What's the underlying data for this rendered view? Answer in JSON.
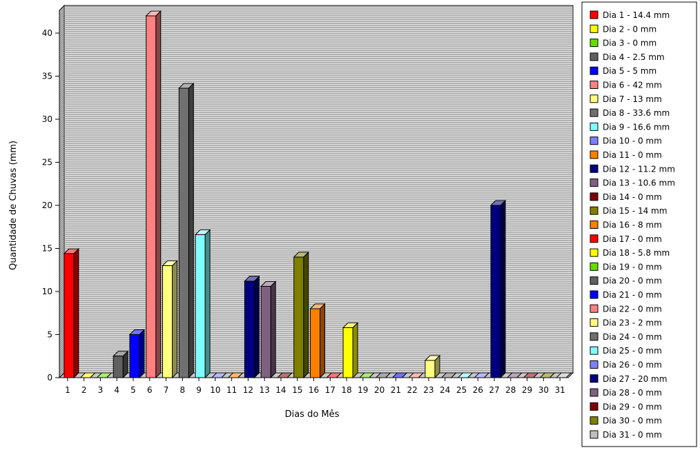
{
  "chart_data": {
    "type": "bar",
    "style": "3d",
    "xlabel": "Dias do Mês",
    "ylabel": "Quantidade de Chuvas (mm)",
    "ylim": [
      0,
      42
    ],
    "yticks": [
      0,
      5,
      10,
      15,
      20,
      25,
      30,
      35,
      40
    ],
    "grid": true,
    "legend_position": "right",
    "categories": [
      "1",
      "2",
      "3",
      "4",
      "5",
      "6",
      "7",
      "8",
      "9",
      "10",
      "11",
      "12",
      "13",
      "14",
      "15",
      "16",
      "17",
      "18",
      "19",
      "20",
      "21",
      "22",
      "23",
      "24",
      "25",
      "26",
      "27",
      "28",
      "29",
      "30",
      "31"
    ],
    "values": [
      14.4,
      0,
      0,
      2.5,
      5,
      42,
      13,
      33.6,
      16.6,
      0,
      0,
      11.2,
      10.6,
      0,
      14,
      8,
      0,
      5.8,
      0,
      0,
      0,
      0,
      2,
      0,
      0,
      0,
      20,
      0,
      0,
      0,
      0
    ],
    "colors": [
      "#ff0000",
      "#ffff00",
      "#66dd00",
      "#606060",
      "#0000ff",
      "#ff8080",
      "#ffff80",
      "#707070",
      "#80ffff",
      "#8080ff",
      "#ff8000",
      "#000080",
      "#806080",
      "#800000",
      "#808000",
      "#ff8000",
      "#ff0000",
      "#ffff00",
      "#66dd00",
      "#606060",
      "#0000ff",
      "#ff8080",
      "#ffff80",
      "#707070",
      "#80ffff",
      "#8080ff",
      "#000080",
      "#806080",
      "#800000",
      "#808000",
      "#c0c0c0"
    ],
    "legend": [
      "Dia 1 - 14.4 mm",
      "Dia 2 - 0 mm",
      "Dia 3 - 0 mm",
      "Dia 4 - 2.5 mm",
      "Dia 5 - 5 mm",
      "Dia 6 - 42 mm",
      "Dia 7 - 13 mm",
      "Dia 8 - 33.6 mm",
      "Dia 9 - 16.6 mm",
      "Dia 10 - 0 mm",
      "Dia 11 - 0 mm",
      "Dia 12 - 11.2 mm",
      "Dia 13 - 10.6 mm",
      "Dia 14 - 0 mm",
      "Dia 15 - 14 mm",
      "Dia 16 - 8 mm",
      "Dia 17 - 0 mm",
      "Dia 18 - 5.8 mm",
      "Dia 19 - 0 mm",
      "Dia 20 - 0 mm",
      "Dia 21 - 0 mm",
      "Dia 22 - 0 mm",
      "Dia 23 - 2 mm",
      "Dia 24 - 0 mm",
      "Dia 25 - 0 mm",
      "Dia 26 - 0 mm",
      "Dia 27 - 20 mm",
      "Dia 28 - 0 mm",
      "Dia 29 - 0 mm",
      "Dia 30 - 0 mm",
      "Dia 31 - 0 mm"
    ]
  }
}
